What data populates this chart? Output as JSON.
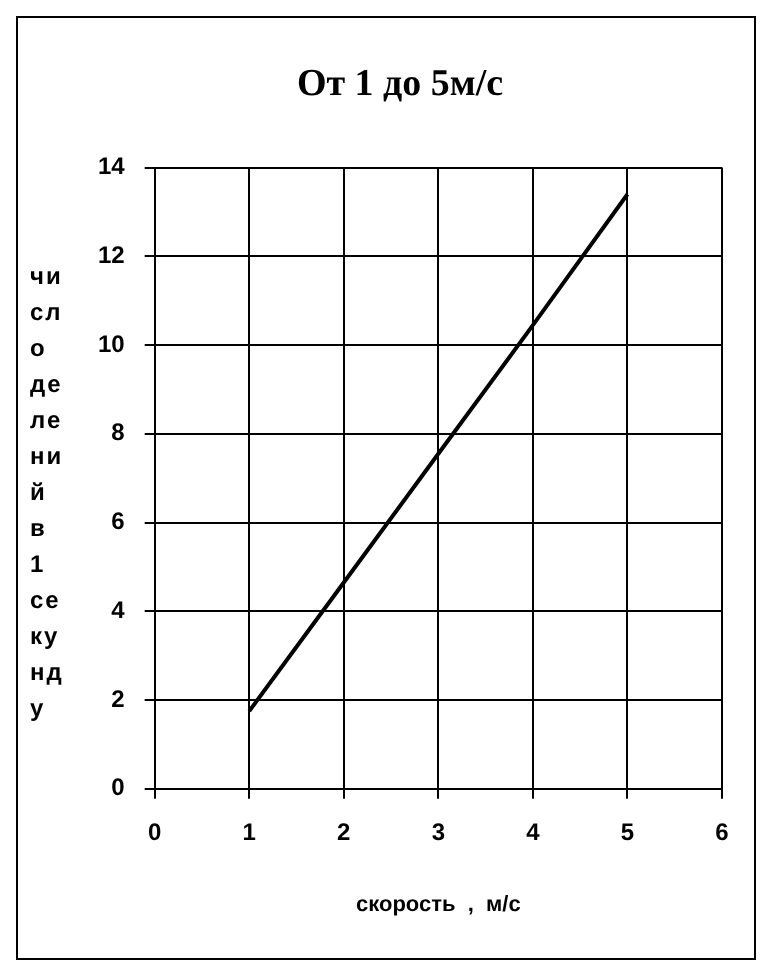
{
  "chart_data": {
    "type": "line",
    "title": "От 1 до 5м/с",
    "xlabel": "скорость  ,  м/с",
    "ylabel": "число делений в 1 секунду",
    "x": [
      1,
      2,
      3,
      4,
      5
    ],
    "series": [
      {
        "color": "#000000",
        "values": [
          1.75,
          4.65,
          7.55,
          10.45,
          13.4
        ]
      }
    ],
    "xlim": [
      0,
      6
    ],
    "xticks": [
      0,
      1,
      2,
      3,
      4,
      5,
      6
    ],
    "ylim": [
      0,
      14
    ],
    "yticks": [
      0,
      2,
      4,
      6,
      8,
      10,
      12,
      14
    ],
    "grid": true,
    "legend": false,
    "marker": "none",
    "line_style": "solid"
  }
}
